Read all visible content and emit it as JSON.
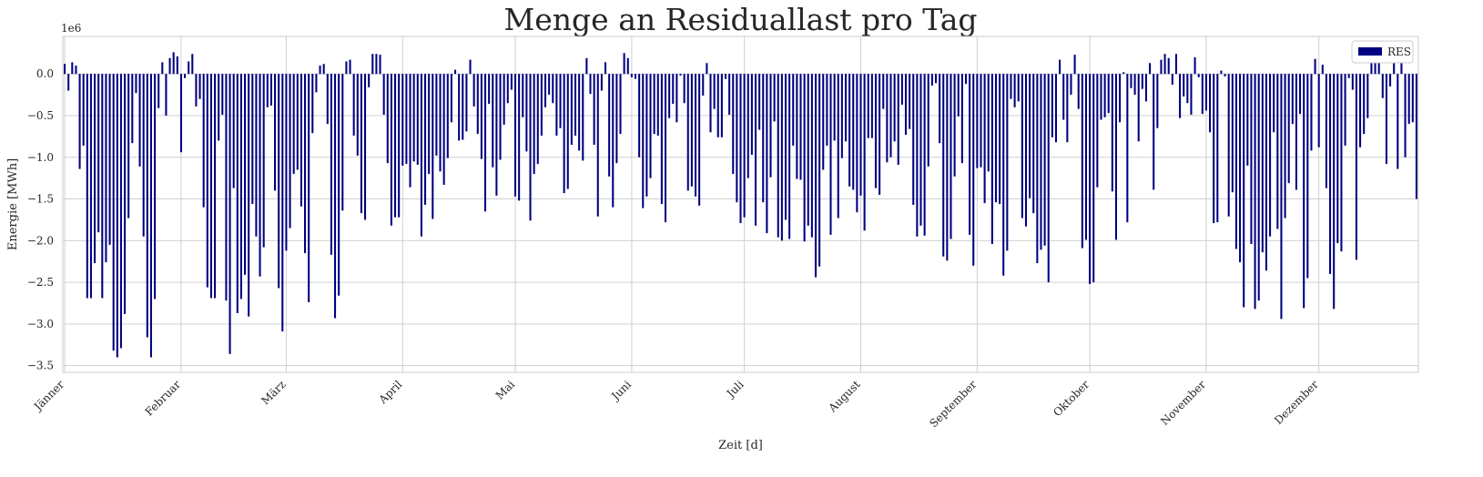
{
  "chart_data": {
    "type": "bar",
    "title": "Menge an Residuallast pro Tag",
    "xlabel": "Zeit [d]",
    "ylabel": "Energie [MWh]",
    "y_scale_label": "1e6",
    "y_multiplier": 1000000,
    "ylim": [
      -3.58,
      0.45
    ],
    "yticks": [
      0.0,
      -0.5,
      -1.0,
      -1.5,
      -2.0,
      -2.5,
      -3.0,
      -3.5
    ],
    "ytick_labels": [
      "0.0",
      "−0.5",
      "−1.0",
      "−1.5",
      "−2.0",
      "−2.5",
      "−3.0",
      "−3.5"
    ],
    "x_tick_labels": [
      "Jänner",
      "Februar",
      "März",
      "April",
      "Mai",
      "Juni",
      "Juli",
      "August",
      "September",
      "Oktober",
      "November",
      "Dezember"
    ],
    "x_tick_days": [
      1,
      32,
      60,
      91,
      121,
      152,
      182,
      213,
      244,
      274,
      305,
      335
    ],
    "grid": true,
    "legend_position": "top-right",
    "series": [
      {
        "name": "RES",
        "color": "#000080",
        "values": [
          0.12,
          -0.2,
          0.14,
          0.1,
          -1.14,
          -0.86,
          -2.69,
          -2.69,
          -2.27,
          -1.9,
          -2.69,
          -2.26,
          -2.05,
          -3.32,
          -3.4,
          -3.29,
          -2.88,
          -1.73,
          -0.83,
          -0.23,
          -1.11,
          -1.95,
          -3.16,
          -3.4,
          -2.7,
          -0.41,
          0.14,
          -0.5,
          0.19,
          0.26,
          0.21,
          -0.94,
          -0.05,
          0.15,
          0.24,
          -0.39,
          -0.3,
          -1.6,
          -2.56,
          -2.69,
          -2.69,
          -0.8,
          -0.49,
          -2.72,
          -3.36,
          -1.37,
          -2.87,
          -2.7,
          -2.41,
          -2.91,
          -1.56,
          -1.95,
          -2.43,
          -2.08,
          -0.4,
          -0.38,
          -1.4,
          -2.57,
          -3.09,
          -2.12,
          -1.85,
          -1.2,
          -1.15,
          -1.59,
          -2.15,
          -2.74,
          -0.71,
          -0.22,
          0.1,
          0.12,
          -0.6,
          -2.17,
          -2.93,
          -2.66,
          -1.64,
          0.15,
          0.17,
          -0.74,
          -0.98,
          -1.67,
          -1.75,
          -0.16,
          0.24,
          0.24,
          0.23,
          -0.49,
          -1.07,
          -1.82,
          -1.72,
          -1.72,
          -1.1,
          -1.08,
          -1.36,
          -1.05,
          -1.09,
          -1.95,
          -1.57,
          -1.2,
          -1.74,
          -0.98,
          -1.17,
          -1.33,
          -1.01,
          -0.58,
          0.05,
          -0.8,
          -0.79,
          -0.69,
          0.17,
          -0.39,
          -0.72,
          -1.02,
          -1.65,
          -0.36,
          -1.12,
          -1.46,
          -1.03,
          -0.61,
          -0.35,
          -0.19,
          -1.47,
          -1.52,
          -0.52,
          -0.93,
          -1.76,
          -1.2,
          -1.08,
          -0.74,
          -0.4,
          -0.25,
          -0.35,
          -0.74,
          -0.65,
          -1.43,
          -1.38,
          -0.85,
          -0.74,
          -0.92,
          -1.04,
          0.19,
          -0.24,
          -0.85,
          -1.71,
          -0.2,
          0.14,
          -1.23,
          -1.6,
          -1.07,
          -0.72,
          0.25,
          0.19,
          -0.04,
          -0.06,
          -1.0,
          -1.61,
          -1.47,
          -1.25,
          -0.72,
          -0.74,
          -1.56,
          -1.78,
          -0.53,
          -0.36,
          -0.58,
          -0.02,
          -0.35,
          -1.4,
          -1.35,
          -1.47,
          -1.58,
          -0.26,
          0.13,
          -0.7,
          -0.42,
          -0.76,
          -0.76,
          -0.06,
          -0.49,
          -1.2,
          -1.54,
          -1.79,
          -1.72,
          -1.25,
          -0.97,
          -1.82,
          -0.67,
          -1.54,
          -1.91,
          -1.24,
          -0.57,
          -1.96,
          -2.0,
          -1.75,
          -1.98,
          -0.86,
          -1.26,
          -1.27,
          -2.01,
          -1.82,
          -1.96,
          -2.44,
          -2.31,
          -1.15,
          -0.86,
          -1.93,
          -0.8,
          -1.73,
          -1.01,
          -0.81,
          -1.35,
          -1.39,
          -1.66,
          -1.46,
          -1.88,
          -0.77,
          -0.77,
          -1.37,
          -1.45,
          -0.42,
          -1.06,
          -1.0,
          -0.81,
          -1.09,
          -0.37,
          -0.73,
          -0.66,
          -1.57,
          -1.95,
          -1.82,
          -1.94,
          -1.11,
          -0.14,
          -0.11,
          -0.83,
          -2.19,
          -2.24,
          -1.98,
          -1.23,
          -0.51,
          -1.07,
          -0.12,
          -1.93,
          -2.3,
          -1.13,
          -1.12,
          -1.55,
          -1.17,
          -2.04,
          -1.54,
          -1.56,
          -2.42,
          -2.12,
          -0.3,
          -0.4,
          -0.33,
          -1.73,
          -1.83,
          -1.49,
          -1.67,
          -2.27,
          -2.11,
          -2.06,
          -2.5,
          -0.76,
          -0.82,
          0.17,
          -0.55,
          -0.82,
          -0.25,
          0.23,
          -0.42,
          -2.09,
          -1.99,
          -2.52,
          -2.5,
          -1.36,
          -0.55,
          -0.52,
          -0.47,
          -1.41,
          -1.99,
          -0.58,
          0.02,
          -1.78,
          -0.17,
          -0.25,
          -0.81,
          -0.18,
          -0.33,
          0.13,
          -1.39,
          -0.65,
          0.17,
          0.24,
          0.19,
          -0.13,
          0.24,
          -0.53,
          -0.27,
          -0.35,
          -0.49,
          0.2,
          -0.04,
          -0.48,
          -0.44,
          -0.7,
          -1.79,
          -1.78,
          0.04,
          -0.03,
          -1.71,
          -1.42,
          -2.1,
          -2.26,
          -2.8,
          -1.1,
          -2.04,
          -2.82,
          -2.72,
          -2.14,
          -2.36,
          -1.95,
          -0.7,
          -1.86,
          -2.94,
          -1.73,
          -1.31,
          -0.6,
          -1.39,
          -0.48,
          -2.81,
          -2.45,
          -0.92,
          0.18,
          -0.88,
          0.11,
          -1.37,
          -2.4,
          -2.82,
          -2.03,
          -2.13,
          -0.86,
          -0.05,
          -0.19,
          -2.23,
          -0.88,
          -0.72,
          -0.53,
          0.23,
          0.21,
          0.22,
          -0.29,
          -1.08,
          -0.15,
          0.17,
          -1.14,
          0.18,
          -1.0,
          -0.6,
          -0.58,
          -1.5
        ]
      }
    ]
  }
}
